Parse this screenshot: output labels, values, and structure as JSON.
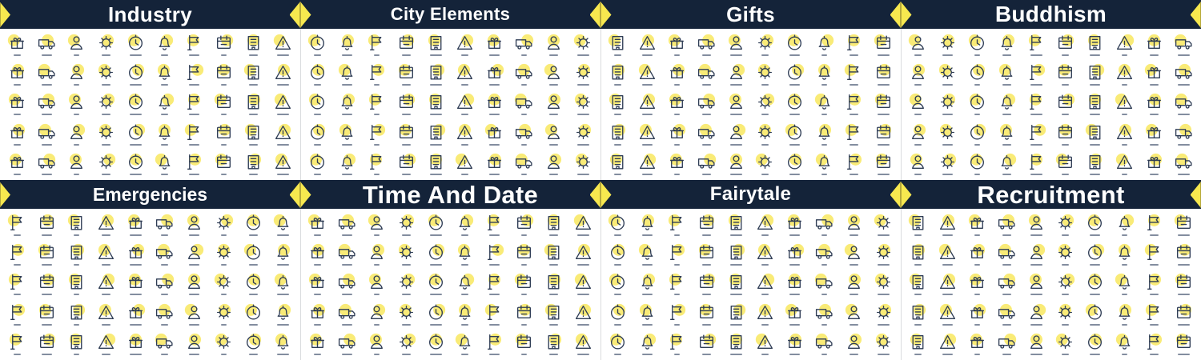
{
  "colors": {
    "background": "#ffffff",
    "header_bg": "#142339",
    "title_color": "#ffffff",
    "accent_yellow": "#f7e84f",
    "icon_accent": "#f8e75f",
    "diamond_stripe": "#b5a83b",
    "icon_stroke": "#2f3d55",
    "divider": "#dadcde",
    "label_color": "#41506b"
  },
  "sections": [
    {
      "id": "industry",
      "title": "Industry",
      "columns": 10,
      "rows": 5
    },
    {
      "id": "city-elements",
      "title": "City Elements",
      "columns": 10,
      "rows": 5
    },
    {
      "id": "gifts",
      "title": "Gifts",
      "columns": 10,
      "rows": 5
    },
    {
      "id": "buddhism",
      "title": "Buddhism",
      "columns": 10,
      "rows": 5
    },
    {
      "id": "emergencies",
      "title": "Emergencies",
      "columns": 10,
      "rows": 5
    },
    {
      "id": "time-and-date",
      "title": "Time And Date",
      "columns": 10,
      "rows": 5
    },
    {
      "id": "fairytale",
      "title": "Fairytale",
      "columns": 10,
      "rows": 5
    },
    {
      "id": "recruitment",
      "title": "Recruitment",
      "columns": 10,
      "rows": 5
    }
  ],
  "icon_shapes": [
    "gift",
    "calendar",
    "clock",
    "truck",
    "building",
    "bell",
    "person",
    "warning",
    "flag",
    "gear"
  ]
}
